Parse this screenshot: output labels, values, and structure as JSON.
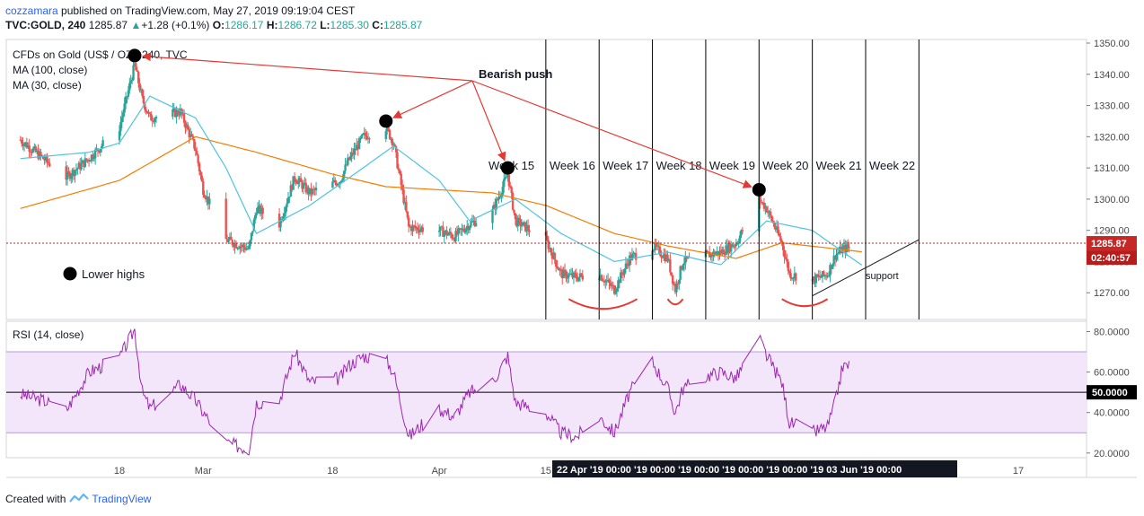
{
  "header": {
    "author": "cozzamara",
    "published_text": "published on TradingView.com, May 27, 2019 09:19:04 CEST",
    "symbol": "TVC:GOLD, 240",
    "last": "1285.87",
    "change": "+1.28 (+0.1%)",
    "o_label": "O:",
    "o_value": "1286.17",
    "h_label": "H:",
    "h_value": "1286.72",
    "l_label": "L:",
    "l_value": "1285.30",
    "c_label": "C:",
    "c_value": "1285.87"
  },
  "footer": {
    "created_with": "Created with",
    "brand": "TradingView"
  },
  "colors": {
    "bull": "#26a69a",
    "bear": "#ef5350",
    "ma100": "#f57c00",
    "ma30": "#4dc3e0",
    "rsi": "#9c27b0",
    "rsi_band": "#f3e5fa",
    "annotation": "#e53935",
    "price_line": "#c62828"
  },
  "chart_data": [
    {
      "type": "candlestick",
      "title": "CFDs on Gold (US$ / OZ), 240, TVC",
      "indicators": [
        "MA (100, close)",
        "MA (30, close)"
      ],
      "ylim": [
        1262,
        1352
      ],
      "y_ticks": [
        1270,
        1280,
        1290,
        1300,
        1310,
        1320,
        1330,
        1340,
        1350
      ],
      "y_tick_labels": [
        "1270.00",
        "1280.00",
        "1290.00",
        "1300.00",
        "1310.00",
        "1320.00",
        "1330.00",
        "1340.00",
        "1350.00"
      ],
      "last_price": 1285.87,
      "last_price_label": "1285.87",
      "countdown": "02:40:57",
      "x_tick_labels": [
        "18",
        "Mar",
        "18",
        "Apr",
        "15"
      ],
      "x_tick_dates": [
        "2019-02-18",
        "2019-03-01",
        "2019-03-18",
        "2019-04-01",
        "2019-04-15"
      ],
      "x_axis_highlight": "22 Apr '19   00:00 '19   00:00 '19   00:00 '19   00:00 '19   00:00 '19   03 Jun '19   00:00",
      "x_tick_after": "17",
      "date_range": [
        "2019-02-05",
        "2019-05-27"
      ],
      "close_anchors": [
        {
          "date": "2019-02-05",
          "close": 1319
        },
        {
          "date": "2019-02-08",
          "close": 1313
        },
        {
          "date": "2019-02-11",
          "close": 1307
        },
        {
          "date": "2019-02-14",
          "close": 1313
        },
        {
          "date": "2019-02-18",
          "close": 1323
        },
        {
          "date": "2019-02-20",
          "close": 1343
        },
        {
          "date": "2019-02-21",
          "close": 1332
        },
        {
          "date": "2019-02-22",
          "close": 1326
        },
        {
          "date": "2019-02-26",
          "close": 1328
        },
        {
          "date": "2019-02-28",
          "close": 1316
        },
        {
          "date": "2019-03-01",
          "close": 1303
        },
        {
          "date": "2019-03-04",
          "close": 1287
        },
        {
          "date": "2019-03-07",
          "close": 1284
        },
        {
          "date": "2019-03-08",
          "close": 1297
        },
        {
          "date": "2019-03-11",
          "close": 1292
        },
        {
          "date": "2019-03-13",
          "close": 1307
        },
        {
          "date": "2019-03-15",
          "close": 1302
        },
        {
          "date": "2019-03-19",
          "close": 1306
        },
        {
          "date": "2019-03-20",
          "close": 1312
        },
        {
          "date": "2019-03-22",
          "close": 1320
        },
        {
          "date": "2019-03-25",
          "close": 1323
        },
        {
          "date": "2019-03-26",
          "close": 1318
        },
        {
          "date": "2019-03-28",
          "close": 1291
        },
        {
          "date": "2019-04-01",
          "close": 1290
        },
        {
          "date": "2019-04-03",
          "close": 1288
        },
        {
          "date": "2019-04-05",
          "close": 1292
        },
        {
          "date": "2019-04-08",
          "close": 1296
        },
        {
          "date": "2019-04-10",
          "close": 1308
        },
        {
          "date": "2019-04-11",
          "close": 1293
        },
        {
          "date": "2019-04-15",
          "close": 1287
        },
        {
          "date": "2019-04-17",
          "close": 1276
        },
        {
          "date": "2019-04-19",
          "close": 1275
        },
        {
          "date": "2019-04-22",
          "close": 1276
        },
        {
          "date": "2019-04-24",
          "close": 1271
        },
        {
          "date": "2019-04-26",
          "close": 1281
        },
        {
          "date": "2019-04-29",
          "close": 1285
        },
        {
          "date": "2019-05-01",
          "close": 1281
        },
        {
          "date": "2019-05-02",
          "close": 1271
        },
        {
          "date": "2019-05-03",
          "close": 1280
        },
        {
          "date": "2019-05-06",
          "close": 1282
        },
        {
          "date": "2019-05-08",
          "close": 1283
        },
        {
          "date": "2019-05-10",
          "close": 1286
        },
        {
          "date": "2019-05-13",
          "close": 1300
        },
        {
          "date": "2019-05-14",
          "close": 1297
        },
        {
          "date": "2019-05-16",
          "close": 1286
        },
        {
          "date": "2019-05-17",
          "close": 1276
        },
        {
          "date": "2019-05-20",
          "close": 1274
        },
        {
          "date": "2019-05-22",
          "close": 1276
        },
        {
          "date": "2019-05-23",
          "close": 1282
        },
        {
          "date": "2019-05-24",
          "close": 1284
        },
        {
          "date": "2019-05-27",
          "close": 1285.87
        }
      ],
      "ma100_anchors": [
        {
          "date": "2019-02-05",
          "value": 1297
        },
        {
          "date": "2019-02-18",
          "value": 1306
        },
        {
          "date": "2019-02-28",
          "value": 1320
        },
        {
          "date": "2019-03-08",
          "value": 1315
        },
        {
          "date": "2019-03-18",
          "value": 1308
        },
        {
          "date": "2019-03-25",
          "value": 1304
        },
        {
          "date": "2019-04-01",
          "value": 1303
        },
        {
          "date": "2019-04-08",
          "value": 1302
        },
        {
          "date": "2019-04-15",
          "value": 1298
        },
        {
          "date": "2019-04-24",
          "value": 1289
        },
        {
          "date": "2019-05-01",
          "value": 1285
        },
        {
          "date": "2019-05-10",
          "value": 1281
        },
        {
          "date": "2019-05-16",
          "value": 1286
        },
        {
          "date": "2019-05-27",
          "value": 1283
        }
      ],
      "ma30_anchors": [
        {
          "date": "2019-02-05",
          "value": 1313
        },
        {
          "date": "2019-02-14",
          "value": 1315
        },
        {
          "date": "2019-02-18",
          "value": 1318
        },
        {
          "date": "2019-02-22",
          "value": 1333
        },
        {
          "date": "2019-02-28",
          "value": 1326
        },
        {
          "date": "2019-03-04",
          "value": 1310
        },
        {
          "date": "2019-03-08",
          "value": 1289
        },
        {
          "date": "2019-03-15",
          "value": 1298
        },
        {
          "date": "2019-03-22",
          "value": 1310
        },
        {
          "date": "2019-03-26",
          "value": 1317
        },
        {
          "date": "2019-04-01",
          "value": 1306
        },
        {
          "date": "2019-04-05",
          "value": 1293
        },
        {
          "date": "2019-04-11",
          "value": 1300
        },
        {
          "date": "2019-04-17",
          "value": 1289
        },
        {
          "date": "2019-04-24",
          "value": 1280
        },
        {
          "date": "2019-05-01",
          "value": 1283
        },
        {
          "date": "2019-05-08",
          "value": 1279
        },
        {
          "date": "2019-05-14",
          "value": 1293
        },
        {
          "date": "2019-05-20",
          "value": 1290
        },
        {
          "date": "2019-05-27",
          "value": 1278
        }
      ],
      "annotations": {
        "bearish_push_label": "Bearish push",
        "lower_highs_label": "Lower highs",
        "support_label": "support",
        "highs": [
          {
            "date": "2019-02-20",
            "price": 1346
          },
          {
            "date": "2019-03-25",
            "price": 1325
          },
          {
            "date": "2019-04-10",
            "price": 1310
          },
          {
            "date": "2019-05-13",
            "price": 1303
          }
        ],
        "weeks": [
          {
            "label": "Week 15",
            "date": "2019-04-07"
          },
          {
            "label": "Week 16",
            "date": "2019-04-15"
          },
          {
            "label": "Week 17",
            "date": "2019-04-22"
          },
          {
            "label": "Week 18",
            "date": "2019-04-29"
          },
          {
            "label": "Week 19",
            "date": "2019-05-06"
          },
          {
            "label": "Week 20",
            "date": "2019-05-13"
          },
          {
            "label": "Week 21",
            "date": "2019-05-20"
          },
          {
            "label": "Week 22",
            "date": "2019-05-27"
          }
        ],
        "week_lines": [
          "2019-04-15",
          "2019-04-22",
          "2019-04-29",
          "2019-05-06",
          "2019-05-13",
          "2019-05-20",
          "2019-05-27",
          "2019-06-03"
        ],
        "support_line": [
          {
            "date": "2019-05-20",
            "price": 1269
          },
          {
            "date": "2019-06-03",
            "price": 1287
          }
        ]
      }
    },
    {
      "type": "line",
      "title": "RSI (14, close)",
      "ylim": [
        17,
        84
      ],
      "y_ticks": [
        20,
        40,
        50,
        60,
        80
      ],
      "y_tick_labels": [
        "20.0000",
        "40.0000",
        "50.0000",
        "60.0000",
        "80.0000"
      ],
      "band": [
        30,
        70
      ],
      "midline": 50,
      "anchors": [
        {
          "date": "2019-02-05",
          "value": 49
        },
        {
          "date": "2019-02-08",
          "value": 46
        },
        {
          "date": "2019-02-11",
          "value": 41
        },
        {
          "date": "2019-02-14",
          "value": 60
        },
        {
          "date": "2019-02-18",
          "value": 67
        },
        {
          "date": "2019-02-20",
          "value": 81
        },
        {
          "date": "2019-02-21",
          "value": 50
        },
        {
          "date": "2019-02-22",
          "value": 42
        },
        {
          "date": "2019-02-26",
          "value": 54
        },
        {
          "date": "2019-02-28",
          "value": 46
        },
        {
          "date": "2019-03-01",
          "value": 40
        },
        {
          "date": "2019-03-04",
          "value": 25
        },
        {
          "date": "2019-03-07",
          "value": 22
        },
        {
          "date": "2019-03-08",
          "value": 45
        },
        {
          "date": "2019-03-11",
          "value": 46
        },
        {
          "date": "2019-03-13",
          "value": 70
        },
        {
          "date": "2019-03-15",
          "value": 55
        },
        {
          "date": "2019-03-19",
          "value": 57
        },
        {
          "date": "2019-03-20",
          "value": 63
        },
        {
          "date": "2019-03-22",
          "value": 68
        },
        {
          "date": "2019-03-25",
          "value": 66
        },
        {
          "date": "2019-03-26",
          "value": 60
        },
        {
          "date": "2019-03-28",
          "value": 28
        },
        {
          "date": "2019-04-01",
          "value": 42
        },
        {
          "date": "2019-04-03",
          "value": 38
        },
        {
          "date": "2019-04-05",
          "value": 50
        },
        {
          "date": "2019-04-08",
          "value": 55
        },
        {
          "date": "2019-04-10",
          "value": 68
        },
        {
          "date": "2019-04-11",
          "value": 45
        },
        {
          "date": "2019-04-15",
          "value": 40
        },
        {
          "date": "2019-04-17",
          "value": 30
        },
        {
          "date": "2019-04-19",
          "value": 28
        },
        {
          "date": "2019-04-22",
          "value": 38
        },
        {
          "date": "2019-04-24",
          "value": 30
        },
        {
          "date": "2019-04-26",
          "value": 50
        },
        {
          "date": "2019-04-29",
          "value": 65
        },
        {
          "date": "2019-05-01",
          "value": 52
        },
        {
          "date": "2019-05-02",
          "value": 40
        },
        {
          "date": "2019-05-03",
          "value": 52
        },
        {
          "date": "2019-05-06",
          "value": 58
        },
        {
          "date": "2019-05-08",
          "value": 60
        },
        {
          "date": "2019-05-10",
          "value": 57
        },
        {
          "date": "2019-05-13",
          "value": 77
        },
        {
          "date": "2019-05-14",
          "value": 68
        },
        {
          "date": "2019-05-16",
          "value": 55
        },
        {
          "date": "2019-05-17",
          "value": 35
        },
        {
          "date": "2019-05-20",
          "value": 30
        },
        {
          "date": "2019-05-22",
          "value": 33
        },
        {
          "date": "2019-05-23",
          "value": 45
        },
        {
          "date": "2019-05-24",
          "value": 63
        },
        {
          "date": "2019-05-27",
          "value": 64
        }
      ]
    }
  ]
}
